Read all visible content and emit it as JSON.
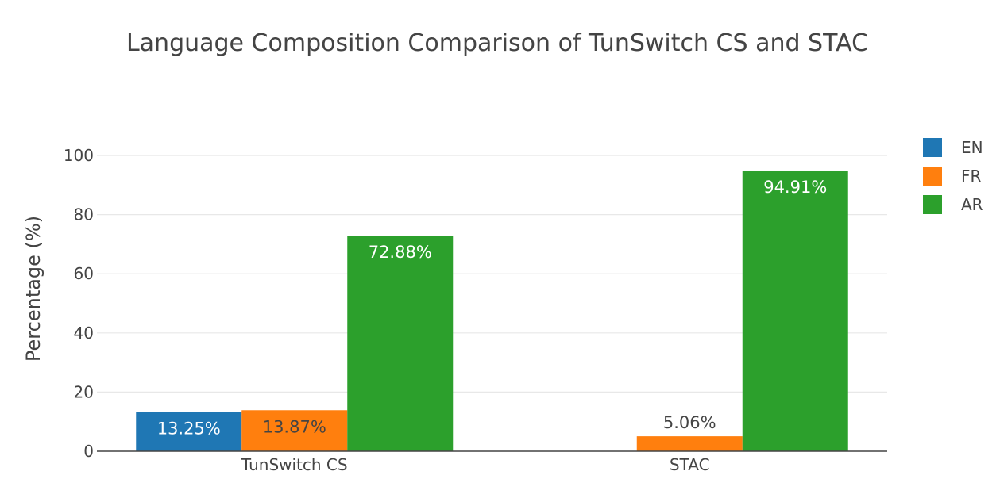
{
  "chart_data": {
    "type": "bar",
    "title": "Language Composition Comparison of TunSwitch CS and STAC",
    "xlabel": "",
    "ylabel": "Percentage (%)",
    "ylim": [
      0,
      100
    ],
    "yticks": [
      "0",
      "20",
      "40",
      "60",
      "80",
      "100"
    ],
    "grid": true,
    "legend_position": "top-right",
    "categories": [
      "TunSwitch CS",
      "STAC"
    ],
    "series": [
      {
        "name": "EN",
        "color": "#1f77b4",
        "values": [
          13.25,
          null
        ],
        "labels": [
          "13.25%",
          ""
        ]
      },
      {
        "name": "FR",
        "color": "#ff7f0e",
        "values": [
          13.87,
          5.06
        ],
        "labels": [
          "13.87%",
          "5.06%"
        ]
      },
      {
        "name": "AR",
        "color": "#2ca02c",
        "values": [
          72.88,
          94.91
        ],
        "labels": [
          "72.88%",
          "94.91%"
        ]
      }
    ]
  }
}
